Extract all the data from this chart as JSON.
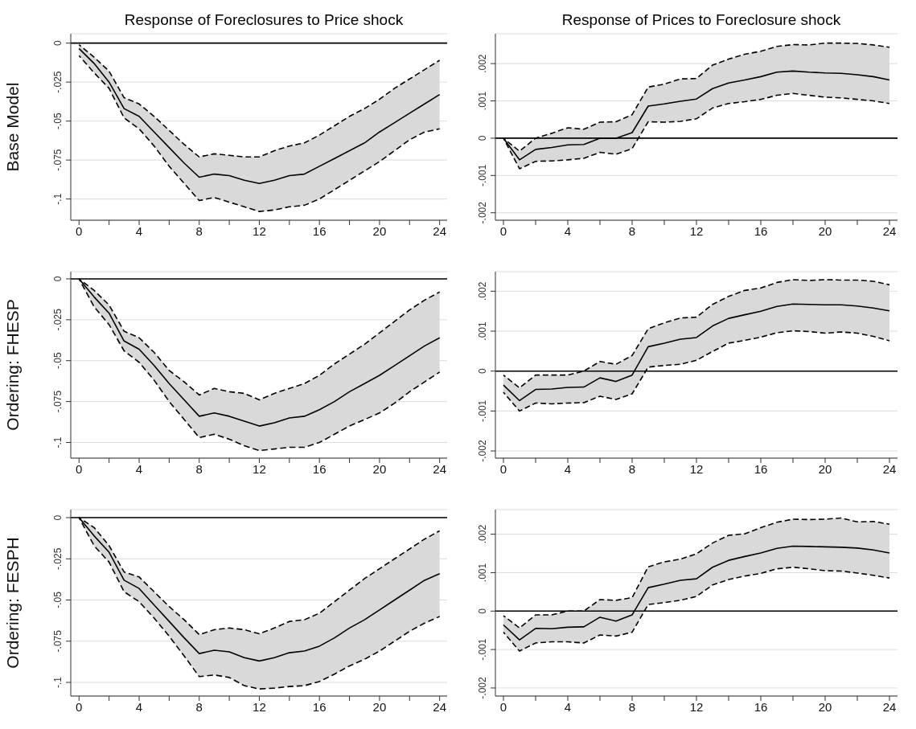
{
  "chart_data": [
    {
      "type": "line",
      "title": "Response of Foreclosures to Price shock",
      "ylabel": "Base Model",
      "x": [
        0,
        1,
        2,
        3,
        4,
        5,
        6,
        7,
        8,
        9,
        10,
        11,
        12,
        13,
        14,
        15,
        16,
        17,
        18,
        19,
        20,
        21,
        22,
        23,
        24
      ],
      "series": [
        {
          "color": "#000000",
          "values": [
            -0.0035,
            -0.013,
            -0.025,
            -0.042,
            -0.047,
            -0.057,
            -0.067,
            -0.077,
            -0.086,
            -0.084,
            -0.085,
            -0.088,
            -0.09,
            -0.088,
            -0.085,
            -0.084,
            -0.079,
            -0.074,
            -0.069,
            -0.064,
            -0.057,
            -0.051,
            -0.045,
            -0.039,
            -0.033
          ],
          "lower": [
            -0.008,
            -0.019,
            -0.029,
            -0.048,
            -0.055,
            -0.066,
            -0.079,
            -0.09,
            -0.101,
            -0.099,
            -0.102,
            -0.105,
            -0.108,
            -0.107,
            -0.105,
            -0.104,
            -0.1,
            -0.094,
            -0.088,
            -0.082,
            -0.076,
            -0.069,
            -0.062,
            -0.057,
            -0.055
          ],
          "upper": [
            -0.001,
            -0.009,
            -0.018,
            -0.035,
            -0.039,
            -0.047,
            -0.056,
            -0.065,
            -0.073,
            -0.071,
            -0.072,
            -0.073,
            -0.073,
            -0.069,
            -0.066,
            -0.064,
            -0.059,
            -0.053,
            -0.047,
            -0.042,
            -0.036,
            -0.029,
            -0.023,
            -0.017,
            -0.011
          ]
        },
        {
          "color": "#000000",
          "line_style": "dashed",
          "values": [
            -0.008,
            -0.019,
            -0.029,
            -0.048,
            -0.055,
            -0.066,
            -0.079,
            -0.09,
            -0.101,
            -0.099,
            -0.102,
            -0.105,
            -0.108,
            -0.107,
            -0.105,
            -0.104,
            -0.1,
            -0.094,
            -0.088,
            -0.082,
            -0.076,
            -0.069,
            -0.062,
            -0.057,
            -0.055
          ]
        },
        {
          "color": "#000000",
          "line_style": "dashed",
          "values": [
            -0.001,
            -0.009,
            -0.018,
            -0.035,
            -0.039,
            -0.047,
            -0.056,
            -0.065,
            -0.073,
            -0.071,
            -0.072,
            -0.073,
            -0.073,
            -0.069,
            -0.066,
            -0.064,
            -0.059,
            -0.053,
            -0.047,
            -0.042,
            -0.036,
            -0.029,
            -0.023,
            -0.017,
            -0.011
          ]
        }
      ],
      "xlim": [
        -0.55,
        24.5
      ],
      "xticks": [
        0,
        {
          "value": 2,
          "label": null
        },
        4,
        {
          "value": 6,
          "label": null
        },
        8,
        {
          "value": 10,
          "label": null
        },
        12,
        {
          "value": 14,
          "label": null
        },
        16,
        {
          "value": 18,
          "label": null
        },
        20,
        {
          "value": 22,
          "label": null
        },
        24
      ],
      "ylim": [
        -0.1136,
        0.006
      ],
      "yticks": [
        {
          "value": -0.1,
          "label": "-.1"
        },
        {
          "value": -0.075,
          "label": "-.075"
        },
        {
          "value": -0.05,
          "label": "-.05"
        },
        {
          "value": -0.025,
          "label": "-.025"
        },
        {
          "value": 0,
          "label": "0"
        }
      ],
      "ref_lines": [
        {
          "axis": "y",
          "value": 0,
          "color": "#000000"
        }
      ],
      "grid": "y",
      "legend": false
    },
    {
      "type": "line",
      "title": "Response of Prices to Foreclosure shock",
      "x": [
        0,
        1,
        2,
        3,
        4,
        5,
        6,
        7,
        8,
        9,
        10,
        11,
        12,
        13,
        14,
        15,
        16,
        17,
        18,
        19,
        20,
        21,
        22,
        23,
        24
      ],
      "series": [
        {
          "color": "#000000",
          "values": [
            0,
            -0.00058,
            -0.0003,
            -0.00025,
            -0.00018,
            -0.00017,
            0,
            0,
            0.00015,
            0.00086,
            0.00092,
            0.00099,
            0.00105,
            0.00133,
            0.00148,
            0.00156,
            0.00165,
            0.00177,
            0.0018,
            0.00177,
            0.00175,
            0.00174,
            0.0017,
            0.00165,
            0.00156
          ],
          "lower": [
            0,
            -0.00082,
            -0.00062,
            -0.00061,
            -0.00058,
            -0.00054,
            -0.00038,
            -0.00043,
            -0.00028,
            0.00044,
            0.00043,
            0.00045,
            0.00052,
            0.00081,
            0.00093,
            0.00098,
            0.00104,
            0.00115,
            0.0012,
            0.00115,
            0.0011,
            0.00108,
            0.00104,
            0.001,
            0.00093
          ],
          "upper": [
            0,
            -0.00035,
            0,
            0.00013,
            0.00028,
            0.00024,
            0.00043,
            0.00044,
            0.00063,
            0.00137,
            0.00145,
            0.00159,
            0.0016,
            0.00196,
            0.00212,
            0.00225,
            0.00233,
            0.00246,
            0.00251,
            0.0025,
            0.00255,
            0.00255,
            0.00254,
            0.0025,
            0.00244
          ]
        },
        {
          "color": "#000000",
          "line_style": "dashed",
          "values": [
            0,
            -0.00082,
            -0.00062,
            -0.00061,
            -0.00058,
            -0.00054,
            -0.00038,
            -0.00043,
            -0.00028,
            0.00044,
            0.00043,
            0.00045,
            0.00052,
            0.00081,
            0.00093,
            0.00098,
            0.00104,
            0.00115,
            0.0012,
            0.00115,
            0.0011,
            0.00108,
            0.00104,
            0.001,
            0.00093
          ]
        },
        {
          "color": "#000000",
          "line_style": "dashed",
          "values": [
            0,
            -0.00035,
            0,
            0.00013,
            0.00028,
            0.00024,
            0.00043,
            0.00044,
            0.00063,
            0.00137,
            0.00145,
            0.00159,
            0.0016,
            0.00196,
            0.00212,
            0.00225,
            0.00233,
            0.00246,
            0.00251,
            0.0025,
            0.00255,
            0.00255,
            0.00254,
            0.0025,
            0.00244
          ]
        }
      ],
      "xlim": [
        -0.5,
        24.5
      ],
      "xticks": [
        0,
        {
          "value": 2,
          "label": null
        },
        4,
        {
          "value": 6,
          "label": null
        },
        8,
        {
          "value": 10,
          "label": null
        },
        12,
        {
          "value": 14,
          "label": null
        },
        16,
        {
          "value": 18,
          "label": null
        },
        20,
        {
          "value": 22,
          "label": null
        },
        24
      ],
      "ylim": [
        -0.0022,
        0.0028
      ],
      "yticks": [
        {
          "value": -0.002,
          "label": "-.002"
        },
        {
          "value": -0.001,
          "label": "-.001"
        },
        {
          "value": 0,
          "label": "0"
        },
        {
          "value": 0.001,
          "label": ".001"
        },
        {
          "value": 0.002,
          "label": ".002"
        }
      ],
      "ref_lines": [
        {
          "axis": "y",
          "value": 0,
          "color": "#000000"
        }
      ],
      "grid": "y",
      "legend": false
    },
    {
      "type": "line",
      "ylabel": "Ordering:  FHESP",
      "x": [
        0,
        1,
        2,
        3,
        4,
        5,
        6,
        7,
        8,
        9,
        10,
        11,
        12,
        13,
        14,
        15,
        16,
        17,
        18,
        19,
        20,
        21,
        22,
        23,
        24
      ],
      "series": [
        {
          "color": "#000000",
          "values": [
            0,
            -0.011,
            -0.021,
            -0.038,
            -0.043,
            -0.053,
            -0.064,
            -0.074,
            -0.084,
            -0.082,
            -0.084,
            -0.087,
            -0.09,
            -0.088,
            -0.085,
            -0.084,
            -0.08,
            -0.075,
            -0.069,
            -0.064,
            -0.059,
            -0.053,
            -0.047,
            -0.041,
            -0.036
          ],
          "lower": [
            0,
            -0.017,
            -0.028,
            -0.044,
            -0.051,
            -0.062,
            -0.075,
            -0.086,
            -0.097,
            -0.095,
            -0.098,
            -0.102,
            -0.105,
            -0.104,
            -0.103,
            -0.103,
            -0.1,
            -0.095,
            -0.09,
            -0.086,
            -0.082,
            -0.076,
            -0.069,
            -0.063,
            -0.057
          ],
          "upper": [
            0,
            -0.007,
            -0.016,
            -0.032,
            -0.036,
            -0.045,
            -0.056,
            -0.063,
            -0.071,
            -0.067,
            -0.069,
            -0.07,
            -0.074,
            -0.07,
            -0.067,
            -0.064,
            -0.059,
            -0.052,
            -0.046,
            -0.04,
            -0.033,
            -0.026,
            -0.019,
            -0.013,
            -0.008
          ]
        },
        {
          "color": "#000000",
          "line_style": "dashed",
          "values": [
            0,
            -0.017,
            -0.028,
            -0.044,
            -0.051,
            -0.062,
            -0.075,
            -0.086,
            -0.097,
            -0.095,
            -0.098,
            -0.102,
            -0.105,
            -0.104,
            -0.103,
            -0.103,
            -0.1,
            -0.095,
            -0.09,
            -0.086,
            -0.082,
            -0.076,
            -0.069,
            -0.063,
            -0.057
          ]
        },
        {
          "color": "#000000",
          "line_style": "dashed",
          "values": [
            0,
            -0.007,
            -0.016,
            -0.032,
            -0.036,
            -0.045,
            -0.056,
            -0.063,
            -0.071,
            -0.067,
            -0.069,
            -0.07,
            -0.074,
            -0.07,
            -0.067,
            -0.064,
            -0.059,
            -0.052,
            -0.046,
            -0.04,
            -0.033,
            -0.026,
            -0.019,
            -0.013,
            -0.008
          ]
        }
      ],
      "xlim": [
        -0.55,
        24.5
      ],
      "xticks": [
        0,
        {
          "value": 2,
          "label": null
        },
        4,
        {
          "value": 6,
          "label": null
        },
        8,
        {
          "value": 10,
          "label": null
        },
        12,
        {
          "value": 14,
          "label": null
        },
        16,
        {
          "value": 18,
          "label": null
        },
        20,
        {
          "value": 22,
          "label": null
        },
        24
      ],
      "ylim": [
        -0.1096,
        0.0044
      ],
      "yticks": [
        {
          "value": -0.1,
          "label": "-.1"
        },
        {
          "value": -0.075,
          "label": "-.075"
        },
        {
          "value": -0.05,
          "label": "-.05"
        },
        {
          "value": -0.025,
          "label": "-.025"
        },
        {
          "value": 0,
          "label": "0"
        }
      ],
      "ref_lines": [
        {
          "axis": "y",
          "value": 0,
          "color": "#000000"
        }
      ],
      "grid": "y",
      "legend": false
    },
    {
      "type": "line",
      "x": [
        0,
        1,
        2,
        3,
        4,
        5,
        6,
        7,
        8,
        9,
        10,
        11,
        12,
        13,
        14,
        15,
        16,
        17,
        18,
        19,
        20,
        21,
        22,
        23,
        24
      ],
      "series": [
        {
          "color": "#000000",
          "values": [
            -0.00035,
            -0.00074,
            -0.00046,
            -0.00045,
            -0.00041,
            -0.0004,
            -0.00017,
            -0.00026,
            -0.0001,
            0.00061,
            0.0007,
            0.0008,
            0.00084,
            0.00113,
            0.00132,
            0.00141,
            0.0015,
            0.00162,
            0.00168,
            0.00167,
            0.00166,
            0.00166,
            0.00163,
            0.00158,
            0.00151
          ],
          "lower": [
            -0.00053,
            -0.001,
            -0.0008,
            -0.00082,
            -0.0008,
            -0.00079,
            -0.00063,
            -0.00071,
            -0.00057,
            0.0001,
            0.00014,
            0.00017,
            0.00027,
            0.00049,
            0.0007,
            0.00077,
            0.00085,
            0.00096,
            0.00101,
            0.00099,
            0.00095,
            0.00098,
            0.00095,
            0.00087,
            0.00076
          ],
          "upper": [
            -0.0001,
            -0.00042,
            -0.0001,
            -0.0001,
            -0.0001,
            0,
            0.00024,
            0.00017,
            0.00039,
            0.00106,
            0.00121,
            0.00133,
            0.00135,
            0.00167,
            0.00187,
            0.00202,
            0.00208,
            0.00222,
            0.00229,
            0.00227,
            0.00229,
            0.00228,
            0.00228,
            0.00225,
            0.00216
          ]
        },
        {
          "color": "#000000",
          "line_style": "dashed",
          "values": [
            -0.00053,
            -0.001,
            -0.0008,
            -0.00082,
            -0.0008,
            -0.00079,
            -0.00063,
            -0.00071,
            -0.00057,
            0.0001,
            0.00014,
            0.00017,
            0.00027,
            0.00049,
            0.0007,
            0.00077,
            0.00085,
            0.00096,
            0.00101,
            0.00099,
            0.00095,
            0.00098,
            0.00095,
            0.00087,
            0.00076
          ]
        },
        {
          "color": "#000000",
          "line_style": "dashed",
          "values": [
            -0.0001,
            -0.00042,
            -0.0001,
            -0.0001,
            -0.0001,
            0,
            0.00024,
            0.00017,
            0.00039,
            0.00106,
            0.00121,
            0.00133,
            0.00135,
            0.00167,
            0.00187,
            0.00202,
            0.00208,
            0.00222,
            0.00229,
            0.00227,
            0.00229,
            0.00228,
            0.00228,
            0.00225,
            0.00216
          ]
        }
      ],
      "xlim": [
        -0.5,
        24.5
      ],
      "xticks": [
        0,
        {
          "value": 2,
          "label": null
        },
        4,
        {
          "value": 6,
          "label": null
        },
        8,
        {
          "value": 10,
          "label": null
        },
        12,
        {
          "value": 14,
          "label": null
        },
        16,
        {
          "value": 18,
          "label": null
        },
        20,
        {
          "value": 22,
          "label": null
        },
        24
      ],
      "ylim": [
        -0.00218,
        0.00249
      ],
      "yticks": [
        {
          "value": -0.002,
          "label": "-.002"
        },
        {
          "value": -0.001,
          "label": "-.001"
        },
        {
          "value": 0,
          "label": "0"
        },
        {
          "value": 0.001,
          "label": ".001"
        },
        {
          "value": 0.002,
          "label": ".002"
        }
      ],
      "ref_lines": [
        {
          "axis": "y",
          "value": 0,
          "color": "#000000"
        }
      ],
      "grid": "y",
      "legend": false
    },
    {
      "type": "line",
      "ylabel": "Ordering:  FESPH",
      "x": [
        0,
        1,
        2,
        3,
        4,
        5,
        6,
        7,
        8,
        9,
        10,
        11,
        12,
        13,
        14,
        15,
        16,
        17,
        18,
        19,
        20,
        21,
        22,
        23,
        24
      ],
      "series": [
        {
          "color": "#000000",
          "values": [
            0,
            -0.011,
            -0.021,
            -0.038,
            -0.043,
            -0.053,
            -0.063,
            -0.073,
            -0.0825,
            -0.0805,
            -0.0815,
            -0.085,
            -0.087,
            -0.085,
            -0.082,
            -0.081,
            -0.078,
            -0.073,
            -0.067,
            -0.062,
            -0.056,
            -0.05,
            -0.044,
            -0.038,
            -0.034
          ],
          "lower": [
            0,
            -0.017,
            -0.027,
            -0.045,
            -0.051,
            -0.061,
            -0.072,
            -0.084,
            -0.0965,
            -0.0955,
            -0.097,
            -0.102,
            -0.104,
            -0.1035,
            -0.1025,
            -0.102,
            -0.0995,
            -0.095,
            -0.09,
            -0.086,
            -0.081,
            -0.075,
            -0.069,
            -0.064,
            -0.06
          ],
          "upper": [
            0,
            -0.006,
            -0.017,
            -0.033,
            -0.036,
            -0.045,
            -0.054,
            -0.062,
            -0.071,
            -0.068,
            -0.067,
            -0.068,
            -0.0705,
            -0.067,
            -0.063,
            -0.062,
            -0.058,
            -0.051,
            -0.044,
            -0.037,
            -0.031,
            -0.025,
            -0.019,
            -0.013,
            -0.008
          ]
        },
        {
          "color": "#000000",
          "line_style": "dashed",
          "values": [
            0,
            -0.017,
            -0.027,
            -0.045,
            -0.051,
            -0.061,
            -0.072,
            -0.084,
            -0.0965,
            -0.0955,
            -0.097,
            -0.102,
            -0.104,
            -0.1035,
            -0.1025,
            -0.102,
            -0.0995,
            -0.095,
            -0.09,
            -0.086,
            -0.081,
            -0.075,
            -0.069,
            -0.064,
            -0.06
          ]
        },
        {
          "color": "#000000",
          "line_style": "dashed",
          "values": [
            0,
            -0.006,
            -0.017,
            -0.033,
            -0.036,
            -0.045,
            -0.054,
            -0.062,
            -0.071,
            -0.068,
            -0.067,
            -0.068,
            -0.0705,
            -0.067,
            -0.063,
            -0.062,
            -0.058,
            -0.051,
            -0.044,
            -0.037,
            -0.031,
            -0.025,
            -0.019,
            -0.013,
            -0.008
          ]
        }
      ],
      "xlim": [
        -0.55,
        24.5
      ],
      "xticks": [
        0,
        {
          "value": 2,
          "label": null
        },
        4,
        {
          "value": 6,
          "label": null
        },
        8,
        {
          "value": 10,
          "label": null
        },
        12,
        {
          "value": 14,
          "label": null
        },
        16,
        {
          "value": 18,
          "label": null
        },
        20,
        {
          "value": 22,
          "label": null
        },
        24
      ],
      "ylim": [
        -0.1083,
        0.0049
      ],
      "yticks": [
        {
          "value": -0.1,
          "label": "-.1"
        },
        {
          "value": -0.075,
          "label": "-.075"
        },
        {
          "value": -0.05,
          "label": "-.05"
        },
        {
          "value": -0.025,
          "label": "-.025"
        },
        {
          "value": 0,
          "label": "0"
        }
      ],
      "ref_lines": [
        {
          "axis": "y",
          "value": 0,
          "color": "#000000"
        }
      ],
      "grid": "y",
      "legend": false
    },
    {
      "type": "line",
      "x": [
        0,
        1,
        2,
        3,
        4,
        5,
        6,
        7,
        8,
        9,
        10,
        11,
        12,
        13,
        14,
        15,
        16,
        17,
        18,
        19,
        20,
        21,
        22,
        23,
        24
      ],
      "series": [
        {
          "color": "#000000",
          "values": [
            -0.00036,
            -0.00075,
            -0.00045,
            -0.00046,
            -0.00042,
            -0.00041,
            -0.00016,
            -0.00026,
            -0.0001,
            0.00061,
            0.0007,
            0.0008,
            0.00084,
            0.00114,
            0.00132,
            0.00142,
            0.00151,
            0.00163,
            0.00169,
            0.00168,
            0.00167,
            0.00166,
            0.00164,
            0.00159,
            0.00151
          ],
          "lower": [
            -0.00055,
            -0.00104,
            -0.00083,
            -0.0008,
            -0.0008,
            -0.00083,
            -0.00062,
            -0.00065,
            -0.00055,
            0.00017,
            0.00022,
            0.00028,
            0.00038,
            0.00068,
            0.00082,
            0.00091,
            0.00098,
            0.0011,
            0.00114,
            0.0011,
            0.00105,
            0.00104,
            0.00099,
            0.00093,
            0.00086
          ],
          "upper": [
            -0.00012,
            -0.00044,
            -0.0001,
            -0.0001,
            0,
            0,
            0.0003,
            0.00028,
            0.00035,
            0.00115,
            0.00128,
            0.00135,
            0.00149,
            0.00177,
            0.00197,
            0.00201,
            0.00217,
            0.00231,
            0.00239,
            0.00238,
            0.00239,
            0.00242,
            0.00232,
            0.00233,
            0.00226
          ]
        },
        {
          "color": "#000000",
          "line_style": "dashed",
          "values": [
            -0.00055,
            -0.00104,
            -0.00083,
            -0.0008,
            -0.0008,
            -0.00083,
            -0.00062,
            -0.00065,
            -0.00055,
            0.00017,
            0.00022,
            0.00028,
            0.00038,
            0.00068,
            0.00082,
            0.00091,
            0.00098,
            0.0011,
            0.00114,
            0.0011,
            0.00105,
            0.00104,
            0.00099,
            0.00093,
            0.00086
          ]
        },
        {
          "color": "#000000",
          "line_style": "dashed",
          "values": [
            -0.00012,
            -0.00044,
            -0.0001,
            -0.0001,
            0,
            0,
            0.0003,
            0.00028,
            0.00035,
            0.00115,
            0.00128,
            0.00135,
            0.00149,
            0.00177,
            0.00197,
            0.00201,
            0.00217,
            0.00231,
            0.00239,
            0.00238,
            0.00239,
            0.00242,
            0.00232,
            0.00233,
            0.00226
          ]
        }
      ],
      "xlim": [
        -0.5,
        24.5
      ],
      "xticks": [
        0,
        {
          "value": 2,
          "label": null
        },
        4,
        {
          "value": 6,
          "label": null
        },
        8,
        {
          "value": 10,
          "label": null
        },
        12,
        {
          "value": 14,
          "label": null
        },
        16,
        {
          "value": 18,
          "label": null
        },
        20,
        {
          "value": 22,
          "label": null
        },
        24
      ],
      "ylim": [
        -0.00221,
        0.00264
      ],
      "yticks": [
        {
          "value": -0.002,
          "label": "-.002"
        },
        {
          "value": -0.001,
          "label": "-.001"
        },
        {
          "value": 0,
          "label": "0"
        },
        {
          "value": 0.001,
          "label": ".001"
        },
        {
          "value": 0.002,
          "label": ".002"
        }
      ],
      "ref_lines": [
        {
          "axis": "y",
          "value": 0,
          "color": "#000000"
        }
      ],
      "grid": "y",
      "legend": false
    }
  ]
}
